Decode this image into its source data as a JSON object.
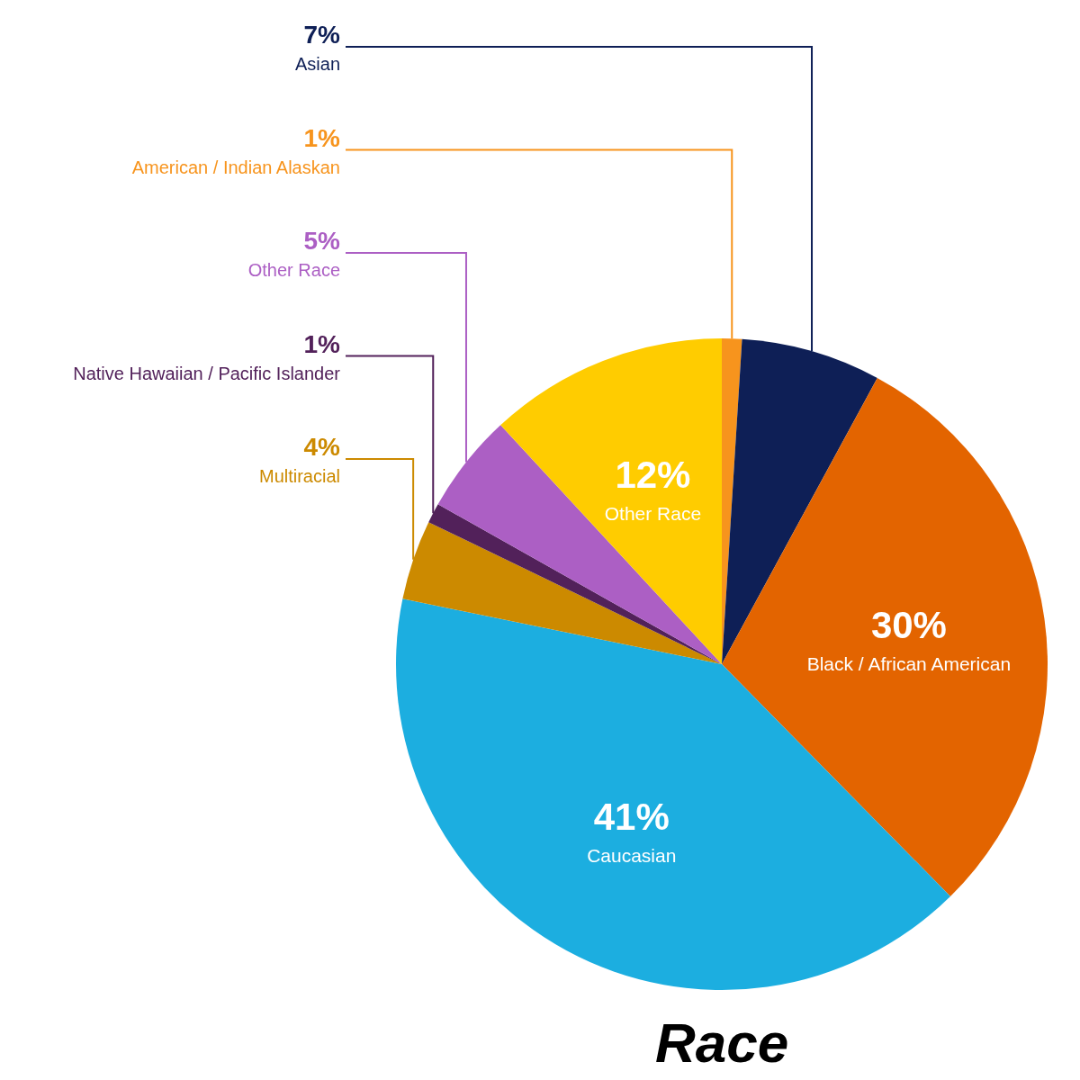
{
  "chart_data": {
    "type": "pie",
    "title": "Race",
    "categories": [
      "American / Indian Alaskan",
      "Asian",
      "Black / African American",
      "Caucasian",
      "Multiracial",
      "Native Hawaiian / Pacific Islander",
      "Other Race",
      "Other Race"
    ],
    "values": [
      1,
      7,
      30,
      41,
      4,
      1,
      5,
      12
    ],
    "value_labels": [
      "1%",
      "7%",
      "30%",
      "41%",
      "4%",
      "1%",
      "5%",
      "12%"
    ],
    "colors": [
      "#f7941d",
      "#0e1f56",
      "#e36400",
      "#1caee0",
      "#cc8a00",
      "#52215a",
      "#ac5fc4",
      "#ffcc00"
    ]
  }
}
